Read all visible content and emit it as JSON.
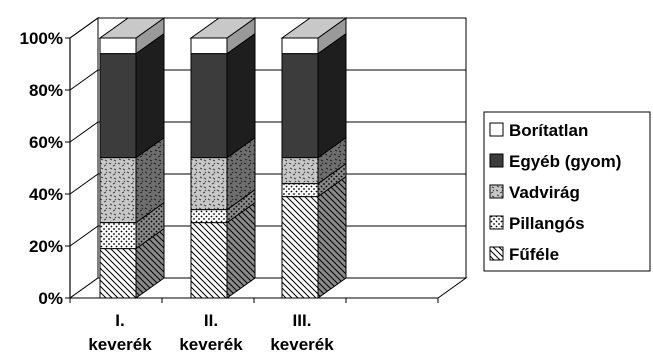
{
  "chart_data": {
    "type": "bar",
    "stacked": true,
    "three_d": true,
    "percent_stacked": true,
    "categories": [
      [
        "I.",
        "keverék"
      ],
      [
        "II.",
        "keverék"
      ],
      [
        "III.",
        "keverék"
      ]
    ],
    "ylim": [
      0,
      100
    ],
    "ytick_values": [
      0,
      20,
      40,
      60,
      80,
      100
    ],
    "ytick_labels": [
      "0%",
      "20%",
      "40%",
      "60%",
      "80%",
      "100%"
    ],
    "grid": true,
    "legend_position": "right",
    "series": [
      {
        "name": "Fűféle",
        "values": [
          19,
          29,
          39
        ],
        "pattern": "hatch"
      },
      {
        "name": "Pillangós",
        "values": [
          10,
          5,
          5
        ],
        "pattern": "dots"
      },
      {
        "name": "Vadvirág",
        "values": [
          25,
          20,
          10
        ],
        "pattern": "confetti"
      },
      {
        "name": "Egyéb (gyom)",
        "values": [
          40,
          40,
          40
        ],
        "pattern": "solid-dark"
      },
      {
        "name": "Borítatlan",
        "values": [
          6,
          6,
          6
        ],
        "pattern": "white"
      }
    ],
    "legend_order": [
      "Borítatlan",
      "Egyéb (gyom)",
      "Vadvirág",
      "Pillangós",
      "Fűféle"
    ]
  }
}
